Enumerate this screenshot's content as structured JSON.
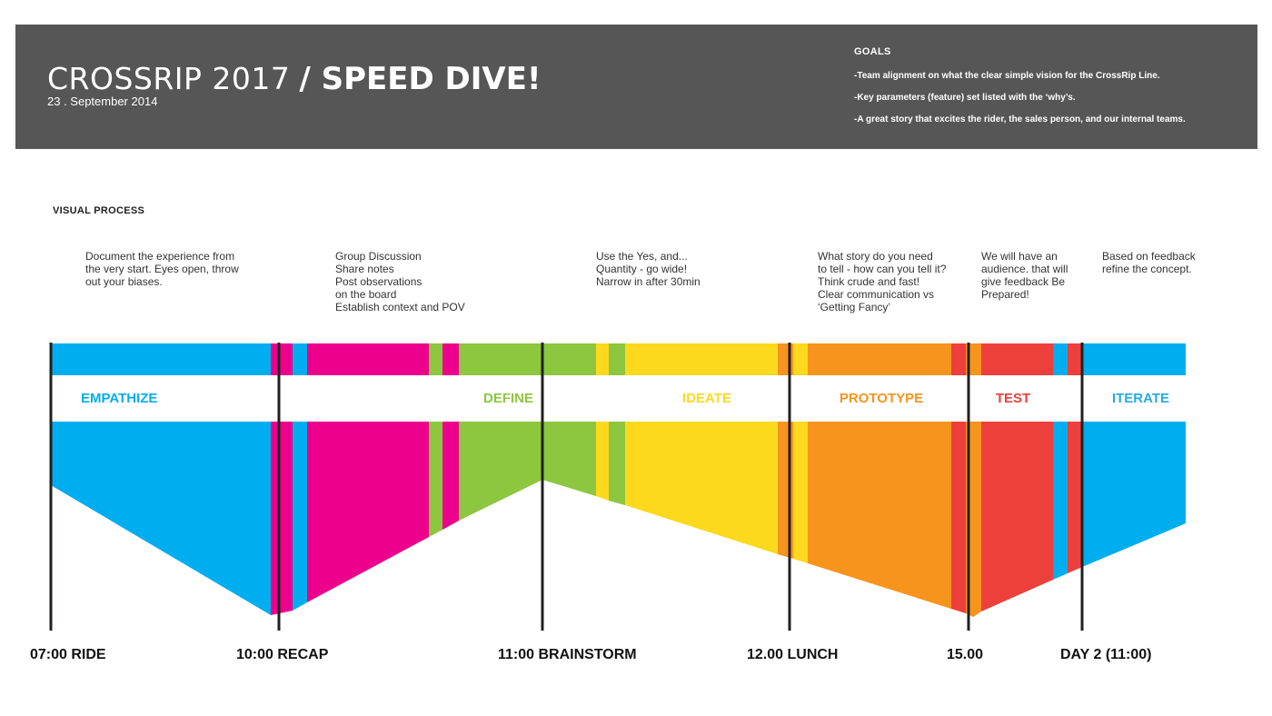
{
  "header": {
    "title": "CROSSRIP 2017",
    "subtitle": "/ SPEED DIVE!",
    "date": "23 . September 2014",
    "goals_title": "GOALS",
    "goals": [
      "-Team alignment on what the clear simple vision for the CrossRip Line.",
      "-Key parameters (feature) set listed with the ‘why’s.",
      "-A great story that excites the rider, the sales person, and our internal teams."
    ]
  },
  "process": {
    "title": "VISUAL PROCESS",
    "notes": [
      "Document the experience from\nthe very start.  Eyes open, throw\nout your biases.",
      "Group Discussion\nShare notes\nPost observations\non the board\nEstablish context and POV",
      "Use the Yes, and...\nQuantity - go wide!\nNarrow in after 30min",
      "What story do you need\nto tell - how can you tell it?\nThink crude and fast!\nClear communication vs\n‘Getting Fancy’",
      "We will have an\naudience. that will\ngive feedback  Be\nPrepared!",
      "Based on feedback\nrefine the concept."
    ],
    "phases": [
      {
        "label": "EMPATHIZE",
        "color": "#00aeef"
      },
      {
        "label": "DEFINE",
        "color": "#8dc63f"
      },
      {
        "label": "IDEATE",
        "color": "#fdd91e"
      },
      {
        "label": "PROTOTYPE",
        "color": "#f7941d"
      },
      {
        "label": "TEST",
        "color": "#ed3f3b"
      },
      {
        "label": "ITERATE",
        "color": "#26aae1"
      }
    ],
    "times": [
      "07:00 RIDE",
      "10:00 RECAP",
      "11:00 BRAINSTORM",
      "12.00 LUNCH",
      "15.00",
      "DAY 2 (11:00)"
    ]
  },
  "colors": {
    "header_bg": "#565656",
    "cyan": "#00aeef",
    "magenta": "#ec008c",
    "green": "#8dc63f",
    "yellow": "#fdd91e",
    "orange": "#f7941d",
    "red": "#ed3f3b"
  }
}
